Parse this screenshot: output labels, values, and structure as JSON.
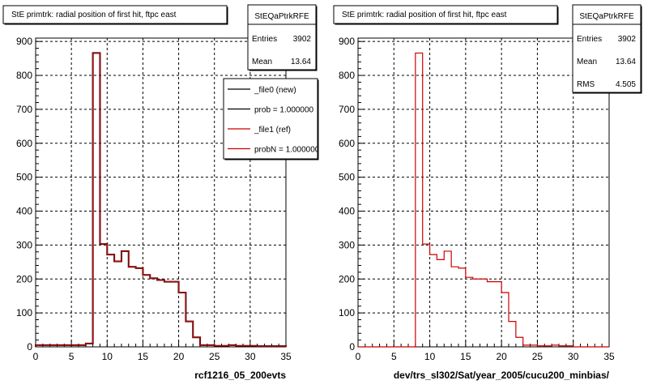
{
  "charts": [
    {
      "title": "StE primtrk: radial position of first hit, ftpc east",
      "stats": {
        "name": "StEQaPtrkRFE",
        "rows": [
          {
            "label": "Entries",
            "value": "3902"
          },
          {
            "label": "Mean",
            "value": "13.64"
          }
        ]
      },
      "xlabel": "rcf1216_05_200evts",
      "legend": [
        {
          "label": "_file0 (new)",
          "color": "#000000"
        },
        {
          "label": "prob = 1.000000",
          "color": "#000000"
        },
        {
          "label": "_file1 (ref)",
          "color": "#cc0000"
        },
        {
          "label": "probN = 1.000000",
          "color": "#cc0000"
        }
      ]
    },
    {
      "title": "StE primtrk: radial position of first hit, ftpc east",
      "stats": {
        "name": "StEQaPtrkRFE",
        "rows": [
          {
            "label": "Entries",
            "value": "3902"
          },
          {
            "label": "Mean",
            "value": "13.64"
          },
          {
            "label": "RMS",
            "value": "4.505"
          }
        ]
      },
      "xlabel": "dev/trs_sl302/Sat/year_2005/cucu200_minbias/",
      "legend": []
    }
  ],
  "footer_text": "",
  "chart_data": [
    {
      "type": "bar",
      "title": "StE primtrk: radial position of first hit, ftpc east",
      "xlabel": "rcf1216_05_200evts",
      "ylabel": "",
      "xlim": [
        0,
        35
      ],
      "ylim": [
        0,
        910
      ],
      "xticks": [
        0,
        5,
        10,
        15,
        20,
        25,
        30,
        35
      ],
      "yticks": [
        0,
        100,
        200,
        300,
        400,
        500,
        600,
        700,
        800,
        900
      ],
      "grid": true,
      "legend_position": "top-right",
      "bin_width": 1,
      "x": [
        0,
        1,
        2,
        3,
        4,
        5,
        6,
        7,
        8,
        9,
        10,
        11,
        12,
        13,
        14,
        15,
        16,
        17,
        18,
        19,
        20,
        21,
        22,
        23,
        24,
        25,
        26,
        27,
        28,
        29,
        30,
        31,
        32,
        33,
        34
      ],
      "series": [
        {
          "name": "_file0 (new)",
          "color": "#000000",
          "values": [
            5,
            5,
            5,
            5,
            5,
            5,
            5,
            10,
            866,
            303,
            272,
            252,
            282,
            236,
            232,
            212,
            202,
            197,
            192,
            192,
            160,
            75,
            28,
            5,
            5,
            3,
            3,
            5,
            3,
            3,
            3,
            2,
            2,
            2,
            2
          ]
        },
        {
          "name": "_file1 (ref)",
          "color": "#cc0000",
          "values": [
            5,
            5,
            5,
            5,
            5,
            5,
            5,
            10,
            866,
            303,
            272,
            252,
            282,
            236,
            232,
            212,
            202,
            197,
            192,
            192,
            160,
            75,
            28,
            5,
            5,
            3,
            3,
            5,
            3,
            3,
            3,
            2,
            2,
            2,
            2
          ]
        }
      ]
    },
    {
      "type": "bar",
      "title": "StE primtrk: radial position of first hit, ftpc east",
      "xlabel": "dev/trs_sl302/Sat/year_2005/cucu200_minbias/",
      "ylabel": "",
      "xlim": [
        0,
        35
      ],
      "ylim": [
        0,
        910
      ],
      "xticks": [
        0,
        5,
        10,
        15,
        20,
        25,
        30,
        35
      ],
      "yticks": [
        0,
        100,
        200,
        300,
        400,
        500,
        600,
        700,
        800,
        900
      ],
      "grid": true,
      "bin_width": 1,
      "x": [
        0,
        1,
        2,
        3,
        4,
        5,
        6,
        7,
        8,
        9,
        10,
        11,
        12,
        13,
        14,
        15,
        16,
        17,
        18,
        19,
        20,
        21,
        22,
        23,
        24,
        25,
        26,
        27,
        28,
        29,
        30,
        31,
        32,
        33,
        34
      ],
      "series": [
        {
          "name": "",
          "color": "#cc0000",
          "values": [
            0,
            0,
            0,
            0,
            0,
            0,
            0,
            0,
            866,
            303,
            272,
            257,
            282,
            236,
            232,
            205,
            200,
            200,
            192,
            192,
            160,
            75,
            28,
            5,
            5,
            3,
            3,
            5,
            3,
            3,
            0,
            0,
            0,
            0,
            0
          ]
        }
      ]
    }
  ]
}
